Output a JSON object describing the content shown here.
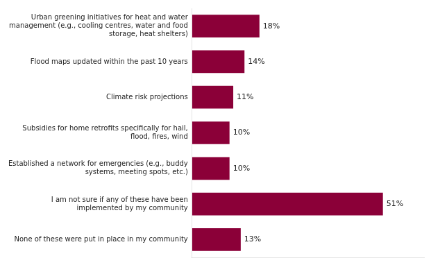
{
  "chart_data": {
    "type": "bar",
    "orientation": "horizontal",
    "categories": [
      "Urban greening initiatives for heat and water\nmanagement (e.g., cooling centres, water and food\nstorage, heat shelters)",
      "Flood maps updated within the past 10 years",
      "Climate risk projections",
      "Subsidies for home retrofits specifically for hail,\nflood, fires, wind",
      "Established a network for emergencies (e.g., buddy\nsystems, meeting spots, etc.)",
      "I am not sure if any of these have been\nimplemented by my community",
      "None of these were put in place in my community"
    ],
    "values": [
      18,
      14,
      11,
      10,
      10,
      51,
      13
    ],
    "value_labels": [
      "18%",
      "14%",
      "11%",
      "10%",
      "10%",
      "51%",
      "13%"
    ],
    "data_labels": true,
    "color": "#8B0038",
    "xlim": [
      0,
      62
    ],
    "grid": false,
    "tick_labels": "y"
  }
}
